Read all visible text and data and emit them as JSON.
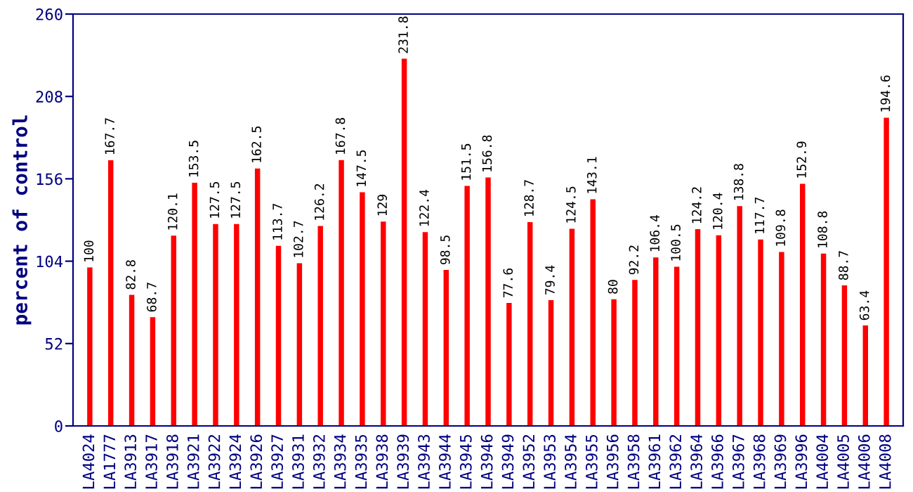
{
  "chart_data": {
    "type": "bar",
    "ylabel": "percent of control",
    "categories": [
      "LA4024",
      "LA1777",
      "LA3913",
      "LA3917",
      "LA3918",
      "LA3921",
      "LA3922",
      "LA3924",
      "LA3926",
      "LA3927",
      "LA3931",
      "LA3932",
      "LA3934",
      "LA3935",
      "LA3938",
      "LA3939",
      "LA3943",
      "LA3944",
      "LA3945",
      "LA3946",
      "LA3949",
      "LA3952",
      "LA3953",
      "LA3954",
      "LA3955",
      "LA3956",
      "LA3958",
      "LA3961",
      "LA3962",
      "LA3964",
      "LA3966",
      "LA3967",
      "LA3968",
      "LA3969",
      "LA3996",
      "LA4004",
      "LA4005",
      "LA4006",
      "LA4008"
    ],
    "values": [
      100,
      167.7,
      82.8,
      68.7,
      120.1,
      153.5,
      127.5,
      127.5,
      162.5,
      113.7,
      102.7,
      126.2,
      167.8,
      147.5,
      129,
      231.8,
      122.4,
      98.5,
      151.5,
      156.8,
      77.6,
      128.7,
      79.4,
      124.5,
      143.1,
      80,
      92.2,
      106.4,
      100.5,
      124.2,
      120.4,
      138.8,
      117.7,
      109.8,
      152.9,
      108.8,
      88.7,
      63.4,
      194.6
    ],
    "color": "#ff0000",
    "ylim": [
      0,
      260
    ],
    "yticks": [
      0,
      52,
      104,
      156,
      208,
      260
    ],
    "data_labels": true,
    "grid": false,
    "legend": false
  }
}
